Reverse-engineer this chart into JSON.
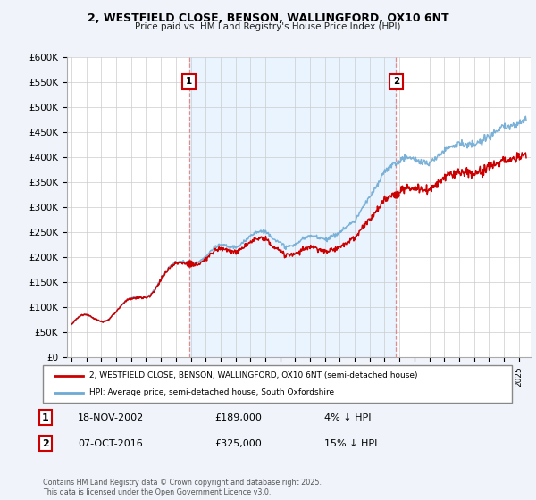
{
  "title1": "2, WESTFIELD CLOSE, BENSON, WALLINGFORD, OX10 6NT",
  "title2": "Price paid vs. HM Land Registry's House Price Index (HPI)",
  "ylim": [
    0,
    600000
  ],
  "yticks": [
    0,
    50000,
    100000,
    150000,
    200000,
    250000,
    300000,
    350000,
    400000,
    450000,
    500000,
    550000,
    600000
  ],
  "ytick_labels": [
    "£0",
    "£50K",
    "£100K",
    "£150K",
    "£200K",
    "£250K",
    "£300K",
    "£350K",
    "£400K",
    "£450K",
    "£500K",
    "£550K",
    "£600K"
  ],
  "hpi_color": "#6eaad4",
  "hpi_fill_color": "#daeaf5",
  "price_color": "#cc0000",
  "purchase1_x": 2002.88,
  "purchase1_y": 189000,
  "purchase2_x": 2016.77,
  "purchase2_y": 325000,
  "vline_color": "#e08080",
  "shaded_region_color": "#ddeeff",
  "legend_label1": "2, WESTFIELD CLOSE, BENSON, WALLINGFORD, OX10 6NT (semi-detached house)",
  "legend_label2": "HPI: Average price, semi-detached house, South Oxfordshire",
  "note1_num": "1",
  "note1_date": "18-NOV-2002",
  "note1_price": "£189,000",
  "note1_hpi": "4% ↓ HPI",
  "note2_num": "2",
  "note2_date": "07-OCT-2016",
  "note2_price": "£325,000",
  "note2_hpi": "15% ↓ HPI",
  "footer": "Contains HM Land Registry data © Crown copyright and database right 2025.\nThis data is licensed under the Open Government Licence v3.0.",
  "bg_color": "#f0f4fa",
  "plot_bg_color": "#ffffff",
  "xlim_start": 1994.7,
  "xlim_end": 2025.8,
  "x_start": 1995,
  "x_end": 2025
}
